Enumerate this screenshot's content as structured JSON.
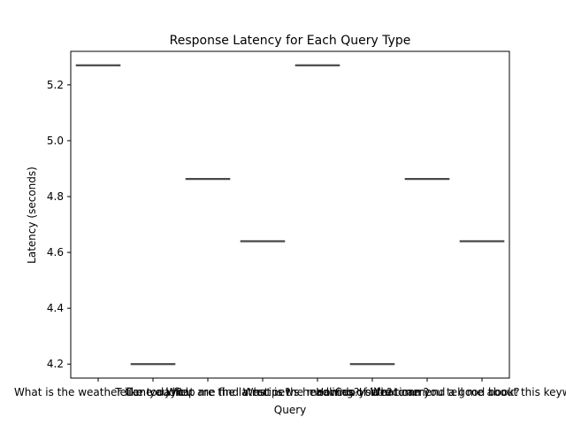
{
  "chart_data": {
    "type": "box",
    "title": "Response Latency for Each Query Type",
    "xlabel": "Query",
    "ylabel": "Latency (seconds)",
    "ylim": [
      4.15,
      5.32
    ],
    "yticks": [
      4.2,
      4.4,
      4.6,
      4.8,
      5.0,
      5.2
    ],
    "ytick_labels": [
      "4.2",
      "4.4",
      "4.6",
      "4.8",
      "5.0",
      "5.2"
    ],
    "categories": [
      "What is the weather like today?",
      "Tell me a joke.",
      "Can you help me find a recipe?",
      "What are the latest news headlines?",
      "What is the meaning of life?",
      "How do I set a timer?",
      "Can you recommend a good book?",
      "What can you tell me about this keyword?"
    ],
    "values": [
      5.27,
      4.2,
      4.863,
      4.64,
      5.27,
      4.2,
      4.863,
      4.64
    ],
    "box_color": "#4c72b0",
    "median_color": "#474747",
    "grid": false
  }
}
